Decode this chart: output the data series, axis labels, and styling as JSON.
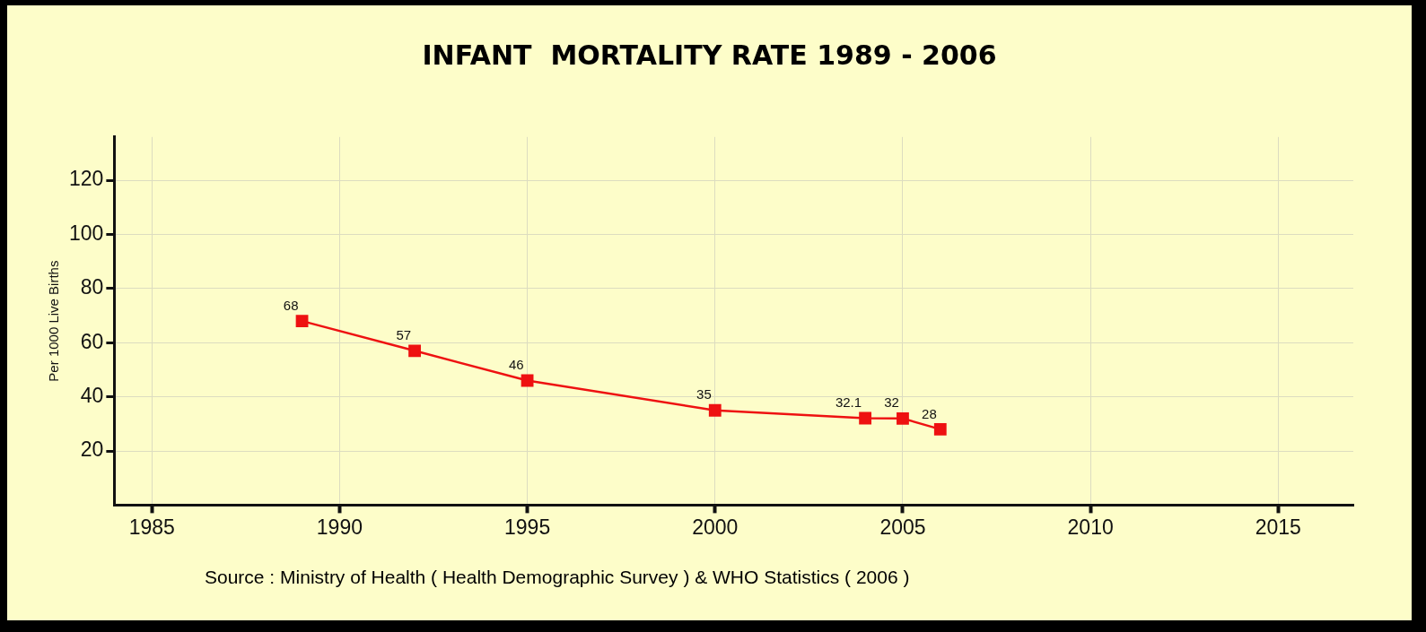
{
  "chart_data": {
    "type": "line",
    "title": "INFANT  MORTALITY RATE 1989 - 2006",
    "ylabel": "Per 1000 Live Births",
    "x": [
      1989,
      1992,
      1995,
      2000,
      2004,
      2005,
      2006
    ],
    "series": [
      {
        "color": "#ee1111",
        "values": [
          68,
          57,
          46,
          35,
          32.1,
          32,
          28
        ]
      }
    ],
    "xlim": [
      1984,
      2017
    ],
    "xticks": [
      1985,
      1990,
      1995,
      2000,
      2005,
      2010,
      2015
    ],
    "ylim": [
      0,
      136
    ],
    "yticks": [
      20,
      40,
      60,
      80,
      100,
      120
    ],
    "grid": true,
    "legend": false,
    "marker": "square",
    "line_style": "solid",
    "data_labels": true,
    "annotations": [
      "Source : Ministry of Health ( Health Demographic Survey ) & WHO Statistics ( 2006 )"
    ]
  }
}
